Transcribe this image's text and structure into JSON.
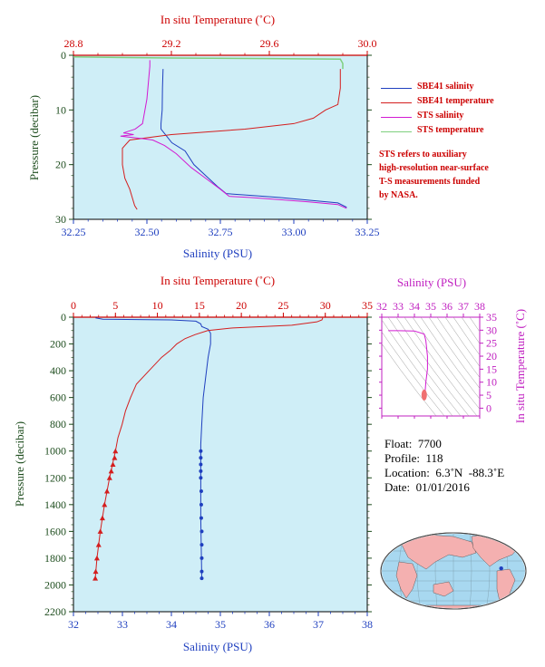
{
  "chart_data": [
    {
      "id": "top",
      "type": "line",
      "xlabel_bottom": "Salinity (PSU)",
      "xlabel_top": "In situ Temperature (˚C)",
      "ylabel": "Pressure (decibar)",
      "salinity_range": [
        32.25,
        33.25
      ],
      "temperature_range": [
        28.8,
        30.0
      ],
      "pressure_range": [
        0,
        30
      ],
      "salinity_ticks": [
        "32.25",
        "32.50",
        "32.75",
        "33.00",
        "33.25"
      ],
      "temperature_ticks": [
        "28.8",
        "29.2",
        "29.6",
        "30.0"
      ],
      "pressure_ticks": [
        "0",
        "10",
        "20",
        "30"
      ],
      "series": [
        {
          "name": "SBE41 salinity",
          "axis": "salinity",
          "color": "#1f3fbf",
          "points": [
            [
              32.555,
              2.5
            ],
            [
              32.553,
              6
            ],
            [
              32.552,
              10
            ],
            [
              32.548,
              12.5
            ],
            [
              32.548,
              13.5
            ],
            [
              32.585,
              16
            ],
            [
              32.63,
              17.5
            ],
            [
              32.66,
              20
            ],
            [
              32.7,
              22
            ],
            [
              32.74,
              24
            ],
            [
              32.77,
              25.3
            ],
            [
              32.85,
              25.6
            ],
            [
              32.95,
              26
            ],
            [
              33.05,
              26.5
            ],
            [
              33.15,
              27
            ],
            [
              33.18,
              27.8
            ]
          ]
        },
        {
          "name": "SBE41 temperature",
          "axis": "temperature",
          "color": "#d41e1e",
          "points": [
            [
              29.89,
              2.5
            ],
            [
              29.89,
              6
            ],
            [
              29.88,
              9
            ],
            [
              29.83,
              10
            ],
            [
              29.78,
              11.5
            ],
            [
              29.7,
              12.5
            ],
            [
              29.5,
              13.5
            ],
            [
              29.2,
              14.5
            ],
            [
              29.03,
              15.5
            ],
            [
              29.0,
              17
            ],
            [
              29.0,
              20
            ],
            [
              29.01,
              22.5
            ],
            [
              29.03,
              24.5
            ],
            [
              29.04,
              26
            ],
            [
              29.05,
              27.5
            ],
            [
              29.06,
              28.2
            ]
          ]
        },
        {
          "name": "STS salinity",
          "axis": "salinity",
          "color": "#d21ad2",
          "points": [
            [
              32.51,
              0.9
            ],
            [
              32.51,
              2
            ],
            [
              32.505,
              5
            ],
            [
              32.5,
              8
            ],
            [
              32.49,
              11
            ],
            [
              32.485,
              12.5
            ],
            [
              32.46,
              13.5
            ],
            [
              32.42,
              14.2
            ],
            [
              32.455,
              14.5
            ],
            [
              32.41,
              14.8
            ],
            [
              32.48,
              15.2
            ],
            [
              32.52,
              15.5
            ],
            [
              32.56,
              16.5
            ],
            [
              32.6,
              18
            ],
            [
              32.65,
              20.5
            ],
            [
              32.7,
              22.5
            ],
            [
              32.75,
              24.5
            ],
            [
              32.78,
              25.8
            ],
            [
              32.85,
              26
            ],
            [
              32.95,
              26.4
            ],
            [
              33.05,
              26.8
            ],
            [
              33.15,
              27.3
            ],
            [
              33.18,
              28
            ]
          ]
        },
        {
          "name": "STS temperature",
          "axis": "temperature",
          "color": "#7ecf7e",
          "points": [
            [
              28.8,
              0.3
            ],
            [
              29.2,
              0.5
            ],
            [
              29.6,
              0.6
            ],
            [
              29.89,
              0.7
            ],
            [
              29.9,
              1.5
            ],
            [
              29.9,
              2.5
            ]
          ]
        }
      ]
    },
    {
      "id": "bottom",
      "type": "line",
      "xlabel_bottom": "Salinity (PSU)",
      "xlabel_top": "In situ Temperature (˚C)",
      "ylabel": "Pressure (decibar)",
      "salinity_range": [
        32,
        38
      ],
      "temperature_range": [
        0,
        35
      ],
      "pressure_range": [
        0,
        2200
      ],
      "salinity_ticks": [
        "32",
        "33",
        "34",
        "35",
        "36",
        "37",
        "38"
      ],
      "temperature_ticks": [
        "0",
        "5",
        "10",
        "15",
        "20",
        "25",
        "30",
        "35"
      ],
      "pressure_ticks": [
        "0",
        "200",
        "400",
        "600",
        "800",
        "1000",
        "1200",
        "1400",
        "1600",
        "1800",
        "2000",
        "2200"
      ],
      "series": [
        {
          "name": "salinity",
          "axis": "salinity",
          "color": "#1f3fbf",
          "marker": "circle",
          "points": [
            [
              32.45,
              5
            ],
            [
              32.6,
              15
            ],
            [
              34.0,
              20
            ],
            [
              34.5,
              30
            ],
            [
              34.6,
              50
            ],
            [
              34.62,
              70
            ],
            [
              34.75,
              90
            ],
            [
              34.8,
              120
            ],
            [
              34.8,
              200
            ],
            [
              34.75,
              300
            ],
            [
              34.7,
              450
            ],
            [
              34.65,
              600
            ],
            [
              34.62,
              800
            ],
            [
              34.6,
              950
            ],
            [
              34.6,
              1000
            ],
            [
              34.6,
              1500
            ],
            [
              34.62,
              1950
            ]
          ],
          "markers": [
            [
              34.6,
              1000
            ],
            [
              34.6,
              1050
            ],
            [
              34.6,
              1100
            ],
            [
              34.6,
              1150
            ],
            [
              34.6,
              1200
            ],
            [
              34.61,
              1300
            ],
            [
              34.61,
              1400
            ],
            [
              34.61,
              1500
            ],
            [
              34.62,
              1600
            ],
            [
              34.62,
              1700
            ],
            [
              34.62,
              1800
            ],
            [
              34.62,
              1900
            ],
            [
              34.62,
              1950
            ]
          ]
        },
        {
          "name": "temperature",
          "axis": "temperature",
          "color": "#d41e1e",
          "marker": "triangle",
          "points": [
            [
              29.7,
              5
            ],
            [
              29.6,
              20
            ],
            [
              29.0,
              35
            ],
            [
              26.0,
              60
            ],
            [
              19.0,
              80
            ],
            [
              16.0,
              100
            ],
            [
              14.5,
              130
            ],
            [
              13.3,
              160
            ],
            [
              12.3,
              200
            ],
            [
              11.5,
              250
            ],
            [
              10.5,
              300
            ],
            [
              9.0,
              400
            ],
            [
              7.5,
              500
            ],
            [
              6.8,
              600
            ],
            [
              6.2,
              700
            ],
            [
              5.8,
              800
            ],
            [
              5.3,
              900
            ],
            [
              5.0,
              1000
            ],
            [
              4.3,
              1200
            ],
            [
              3.7,
              1400
            ],
            [
              3.2,
              1600
            ],
            [
              2.8,
              1800
            ],
            [
              2.6,
              1950
            ]
          ],
          "markers": [
            [
              5.0,
              1000
            ],
            [
              4.9,
              1050
            ],
            [
              4.7,
              1100
            ],
            [
              4.5,
              1150
            ],
            [
              4.3,
              1200
            ],
            [
              4.0,
              1300
            ],
            [
              3.7,
              1400
            ],
            [
              3.45,
              1500
            ],
            [
              3.2,
              1600
            ],
            [
              3.0,
              1700
            ],
            [
              2.8,
              1800
            ],
            [
              2.65,
              1900
            ],
            [
              2.6,
              1950
            ]
          ]
        }
      ]
    },
    {
      "id": "ts",
      "type": "line",
      "xlabel_top": "Salinity (PSU)",
      "ylabel_right": "In situ Temperature (˚C)",
      "salinity_range": [
        32,
        38
      ],
      "temperature_range": [
        -3,
        35
      ],
      "salinity_ticks": [
        "32",
        "33",
        "34",
        "35",
        "36",
        "37",
        "38"
      ],
      "temperature_ticks": [
        "0",
        "5",
        "10",
        "15",
        "20",
        "25",
        "30",
        "35"
      ],
      "series": [
        {
          "name": "profile",
          "color": "#d21ad2",
          "points": [
            [
              32.4,
              29.8
            ],
            [
              33.0,
              29.8
            ],
            [
              34.0,
              29.7
            ],
            [
              34.6,
              28.5
            ],
            [
              34.7,
              26
            ],
            [
              34.8,
              20
            ],
            [
              34.8,
              15
            ],
            [
              34.7,
              10
            ],
            [
              34.65,
              6
            ],
            [
              34.6,
              4
            ]
          ]
        }
      ]
    }
  ],
  "legend": [
    {
      "label": "SBE41 salinity",
      "color": "#1f3fbf"
    },
    {
      "label": "SBE41 temperature",
      "color": "#d41e1e"
    },
    {
      "label": "STS salinity",
      "color": "#d21ad2"
    },
    {
      "label": "STS temperature",
      "color": "#7ecf7e"
    }
  ],
  "note": [
    "STS refers to auxiliary",
    "high-resolution near-surface",
    "T-S measurements funded",
    "by NASA."
  ],
  "info": {
    "float": "Float:  7700",
    "profile": "Profile:  118",
    "location": "Location:  6.3˚N  -88.3˚E",
    "date": "Date:  01/01/2016"
  },
  "map": {
    "marker_lon": -88.3,
    "marker_lat": 6.3
  }
}
